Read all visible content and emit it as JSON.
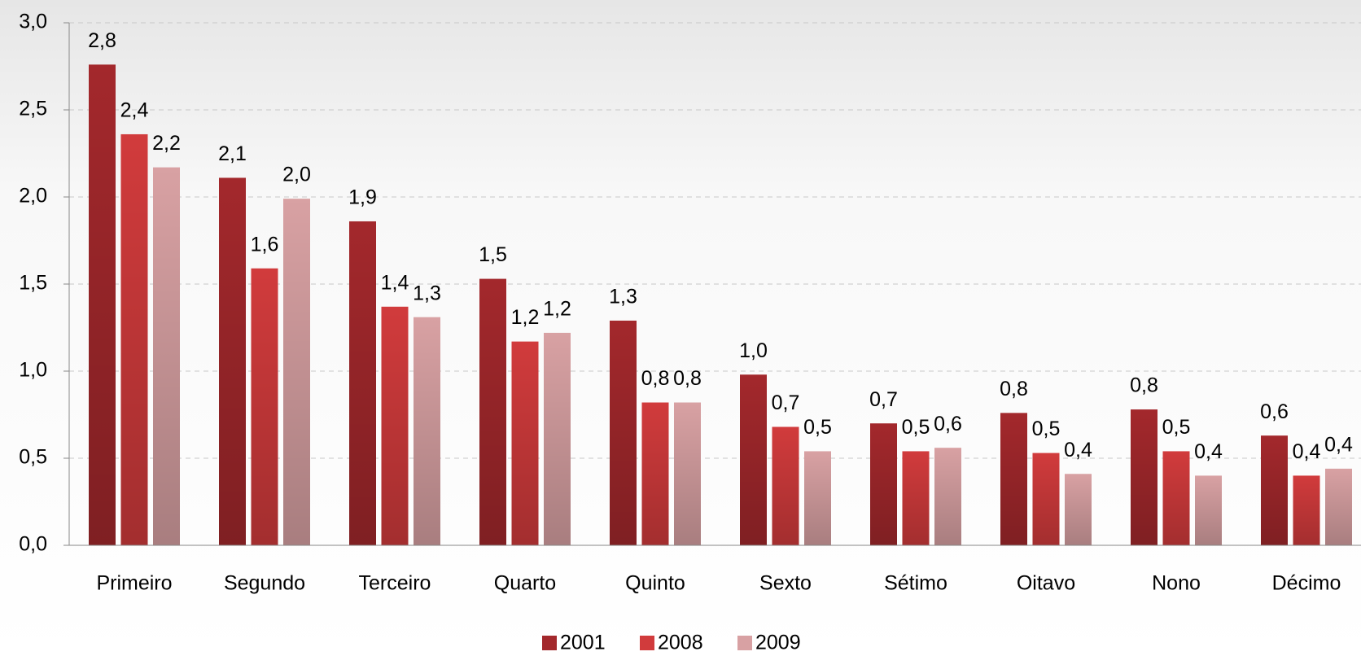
{
  "chart_data": {
    "type": "bar",
    "categories": [
      "Primeiro",
      "Segundo",
      "Terceiro",
      "Quarto",
      "Quinto",
      "Sexto",
      "Sétimo",
      "Oitavo",
      "Nono",
      "Décimo"
    ],
    "series": [
      {
        "name": "2001",
        "color": "#a3282c",
        "values": [
          2.76,
          2.11,
          1.86,
          1.53,
          1.29,
          0.98,
          0.7,
          0.76,
          0.78,
          0.63
        ],
        "value_labels": [
          "2,8",
          "2,1",
          "1,9",
          "1,5",
          "1,3",
          "1,0",
          "0,7",
          "0,8",
          "0,8",
          "0,6"
        ]
      },
      {
        "name": "2008",
        "color": "#d13b3c",
        "values": [
          2.36,
          1.59,
          1.37,
          1.17,
          0.82,
          0.68,
          0.54,
          0.53,
          0.54,
          0.4
        ],
        "value_labels": [
          "2,4",
          "1,6",
          "1,4",
          "1,2",
          "0,8",
          "0,7",
          "0,5",
          "0,5",
          "0,5",
          "0,4"
        ]
      },
      {
        "name": "2009",
        "color": "#d8a1a3",
        "values": [
          2.17,
          1.99,
          1.31,
          1.22,
          0.82,
          0.54,
          0.56,
          0.41,
          0.4,
          0.44
        ],
        "value_labels": [
          "2,2",
          "2,0",
          "1,3",
          "1,2",
          "0,8",
          "0,5",
          "0,6",
          "0,4",
          "0,4",
          "0,4"
        ]
      }
    ],
    "ylim": [
      0,
      3
    ],
    "yticks": [
      {
        "value": 0,
        "label": "0,0"
      },
      {
        "value": 0.5,
        "label": "0,5"
      },
      {
        "value": 1,
        "label": "1,0"
      },
      {
        "value": 1.5,
        "label": "1,5"
      },
      {
        "value": 2,
        "label": "2,0"
      },
      {
        "value": 2.5,
        "label": "2,5"
      },
      {
        "value": 3,
        "label": "3,0"
      }
    ],
    "grid": true,
    "legend": "bottom"
  }
}
